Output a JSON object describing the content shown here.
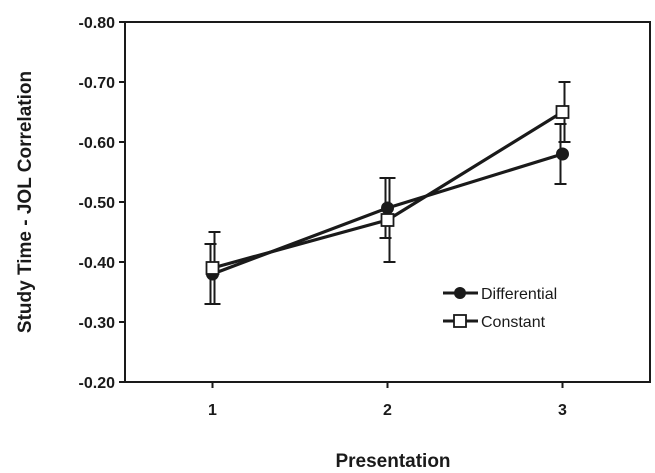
{
  "chart_data": {
    "type": "line",
    "xlabel": "Presentation",
    "ylabel": "Study Time - JOL Correlation",
    "x": [
      1,
      2,
      3
    ],
    "x_tick_labels": [
      "1",
      "2",
      "3"
    ],
    "xlim": [
      0.5,
      3.5
    ],
    "ylim": [
      -0.2,
      -0.8
    ],
    "y_ticks": [
      -0.2,
      -0.3,
      -0.4,
      -0.5,
      -0.6,
      -0.7,
      -0.8
    ],
    "y_tick_labels": [
      "-0.20",
      "-0.30",
      "-0.40",
      "-0.50",
      "-0.60",
      "-0.70",
      "-0.80"
    ],
    "y_axis_inverted": true,
    "grid": false,
    "legend_position": "lower-right",
    "series": [
      {
        "name": "Differential",
        "marker": "filled-circle",
        "color": "#1a1a1a",
        "values": [
          -0.38,
          -0.49,
          -0.58
        ],
        "error": [
          0.05,
          0.05,
          0.05
        ]
      },
      {
        "name": "Constant",
        "marker": "open-square",
        "color": "#1a1a1a",
        "values": [
          -0.39,
          -0.47,
          -0.65
        ],
        "error": [
          0.06,
          0.07,
          0.05
        ]
      }
    ]
  }
}
